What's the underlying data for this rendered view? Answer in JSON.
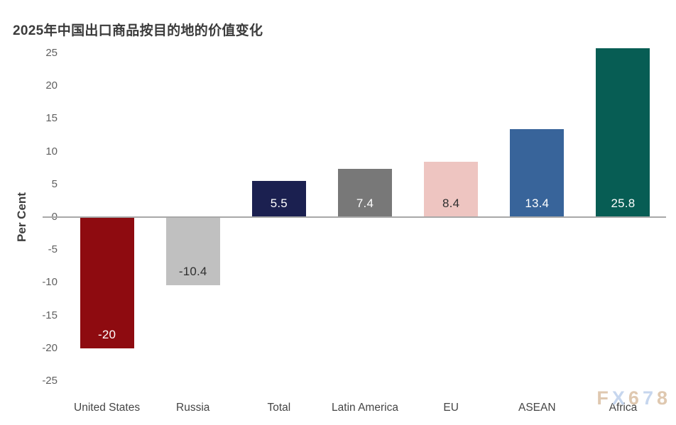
{
  "page": {
    "background": "#ffffff"
  },
  "chart_data": {
    "type": "bar",
    "title": "2025年中国出口商品按目的地的价值变化",
    "xlabel": "",
    "ylabel": "Per Cent",
    "categories": [
      "United States",
      "Russia",
      "Total",
      "Latin America",
      "EU",
      "ASEAN",
      "Africa"
    ],
    "values": [
      -20,
      -10.4,
      5.5,
      7.4,
      8.4,
      13.4,
      25.8
    ],
    "value_labels": [
      "-20",
      "-10.4",
      "5.5",
      "7.4",
      "8.4",
      "13.4",
      "25.8"
    ],
    "bar_colors": [
      "#8e0b10",
      "#c0c0c0",
      "#1b2050",
      "#787878",
      "#eec5c1",
      "#38649a",
      "#075d54"
    ],
    "value_label_colors": [
      "#ffffff",
      "#2f2f2f",
      "#ffffff",
      "#ffffff",
      "#2f2f2f",
      "#ffffff",
      "#ffffff"
    ],
    "ylim": [
      -25,
      25
    ],
    "yticks": [
      25,
      20,
      15,
      10,
      5,
      0,
      -5,
      -10,
      -15,
      -20,
      -25
    ],
    "ytick_labels": [
      "25",
      "20",
      "15",
      "10",
      "5",
      "0",
      "-5",
      "-10",
      "-15",
      "-20",
      "-25"
    ],
    "grid": false,
    "legend": null,
    "watermark": {
      "text": "FX678",
      "letter_colors": [
        "#dfc8b0",
        "#c6d6ee",
        "#dfc8b0",
        "#c6d6ee",
        "#dfc8b0"
      ]
    }
  },
  "colors": {
    "title": "#3b3b3b",
    "axis_line": "#a8a8a8",
    "tick_label": "#5f5f5f",
    "category_label": "#454545",
    "y_axis_label": "#3f3f3f"
  }
}
